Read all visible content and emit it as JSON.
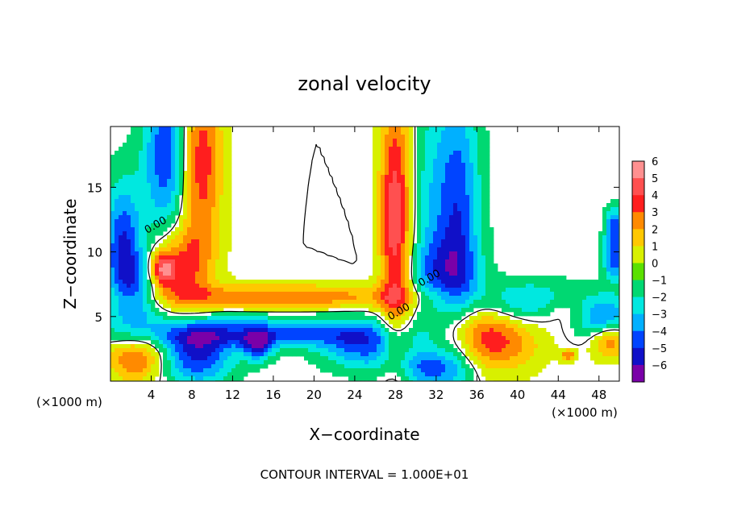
{
  "chart_data": {
    "type": "heatmap",
    "title": "zonal velocity",
    "xlabel": "X−coordinate",
    "ylabel": "Z−coordinate",
    "x_unit": "(×1000 m)",
    "x_unit_right": "(×1000 m)",
    "footer": "CONTOUR INTERVAL = 1.000E+01",
    "xlim": [
      0,
      50
    ],
    "ylim": [
      0,
      19.7
    ],
    "x_ticks": [
      4,
      8,
      12,
      16,
      20,
      24,
      28,
      32,
      36,
      40,
      44,
      48
    ],
    "y_ticks": [
      5,
      10,
      15
    ],
    "colorbar": {
      "levels": [
        6,
        5,
        4,
        3,
        2,
        1,
        0,
        -1,
        -2,
        -3,
        -4,
        -5,
        -6
      ],
      "labels": [
        "6",
        "5",
        "4",
        "3",
        "2",
        "1",
        "0",
        "−1",
        "−2",
        "−3",
        "−4",
        "−5",
        "−6"
      ],
      "colors": [
        "#ff9090",
        "#ff5050",
        "#ff1e1e",
        "#ff8a00",
        "#ffc800",
        "#d8f000",
        "#5ae000",
        "#00d872",
        "#00e8e0",
        "#00b0ff",
        "#0044ff",
        "#1010c8",
        "#7a00a8"
      ]
    },
    "contour_labels": [
      {
        "text": "0.00",
        "x": 3.6,
        "z": 11.4
      },
      {
        "text": "0.00",
        "x": 30.5,
        "z": 7.3
      },
      {
        "text": "0.00",
        "x": 27.5,
        "z": 4.7
      }
    ],
    "features": [
      {
        "x": 5.5,
        "z": 17.5,
        "u": -4.5,
        "sx": 1.6,
        "sz": 5.0
      },
      {
        "x": 8.8,
        "z": 17.0,
        "u": 4.5,
        "sx": 1.5,
        "sz": 5.0
      },
      {
        "x": 6.5,
        "z": 9.0,
        "u": 4.0,
        "sx": 2.2,
        "sz": 2.2
      },
      {
        "x": 1.2,
        "z": 10.5,
        "u": -4.5,
        "sx": 1.3,
        "sz": 3.5
      },
      {
        "x": 3.0,
        "z": 7.2,
        "u": -3.5,
        "sx": 1.6,
        "sz": 2.2
      },
      {
        "x": 5.0,
        "z": 8.6,
        "u": 5.0,
        "sx": 0.9,
        "sz": 0.9
      },
      {
        "x": 17.0,
        "z": 6.5,
        "u": 3.5,
        "sx": 9.5,
        "sz": 0.7
      },
      {
        "x": 17.0,
        "z": 4.8,
        "u": -1.0,
        "sx": 10.0,
        "sz": 0.7
      },
      {
        "x": 15.0,
        "z": 3.6,
        "u": -3.8,
        "sx": 9.5,
        "sz": 0.7
      },
      {
        "x": 8.5,
        "z": 2.0,
        "u": -4.8,
        "sx": 2.5,
        "sz": 1.6
      },
      {
        "x": 2.5,
        "z": 1.8,
        "u": 4.0,
        "sx": 2.0,
        "sz": 1.3
      },
      {
        "x": 14.5,
        "z": 2.7,
        "u": -4.5,
        "sx": 1.0,
        "sz": 0.8
      },
      {
        "x": 27.8,
        "z": 12.5,
        "u": 4.8,
        "sx": 1.0,
        "sz": 7.0
      },
      {
        "x": 29.0,
        "z": 12.0,
        "u": 1.2,
        "sx": 0.9,
        "sz": 7.5
      },
      {
        "x": 31.0,
        "z": 12.5,
        "u": -1.5,
        "sx": 1.2,
        "sz": 7.5
      },
      {
        "x": 34.0,
        "z": 12.5,
        "u": -4.5,
        "sx": 1.6,
        "sz": 7.5
      },
      {
        "x": 32.5,
        "z": 8.5,
        "u": -2.0,
        "sx": 2.5,
        "sz": 1.8
      },
      {
        "x": 37.5,
        "z": 3.3,
        "u": 4.2,
        "sx": 3.2,
        "sz": 1.8
      },
      {
        "x": 34.5,
        "z": 4.5,
        "u": 1.5,
        "sx": 2.5,
        "sz": 1.2
      },
      {
        "x": 41.0,
        "z": 6.0,
        "u": -3.5,
        "sx": 4.0,
        "sz": 1.2
      },
      {
        "x": 44.5,
        "z": 5.5,
        "u": 2.0,
        "sx": 2.0,
        "sz": 0.9
      },
      {
        "x": 48.5,
        "z": 4.8,
        "u": -4.0,
        "sx": 1.8,
        "sz": 1.2
      },
      {
        "x": 49.0,
        "z": 3.2,
        "u": 4.0,
        "sx": 1.3,
        "sz": 1.0
      },
      {
        "x": 25.0,
        "z": 2.5,
        "u": -3.5,
        "sx": 3.0,
        "sz": 1.2
      },
      {
        "x": 31.5,
        "z": 1.0,
        "u": -3.5,
        "sx": 2.5,
        "sz": 1.0
      },
      {
        "x": 49.5,
        "z": 9.5,
        "u": -4.5,
        "sx": 0.7,
        "sz": 1.2
      },
      {
        "x": 49.5,
        "z": 12.0,
        "u": -4.0,
        "sx": 0.6,
        "sz": 1.0
      },
      {
        "x": 45.0,
        "z": 2.0,
        "u": 4.0,
        "sx": 0.5,
        "sz": 0.3
      }
    ]
  }
}
